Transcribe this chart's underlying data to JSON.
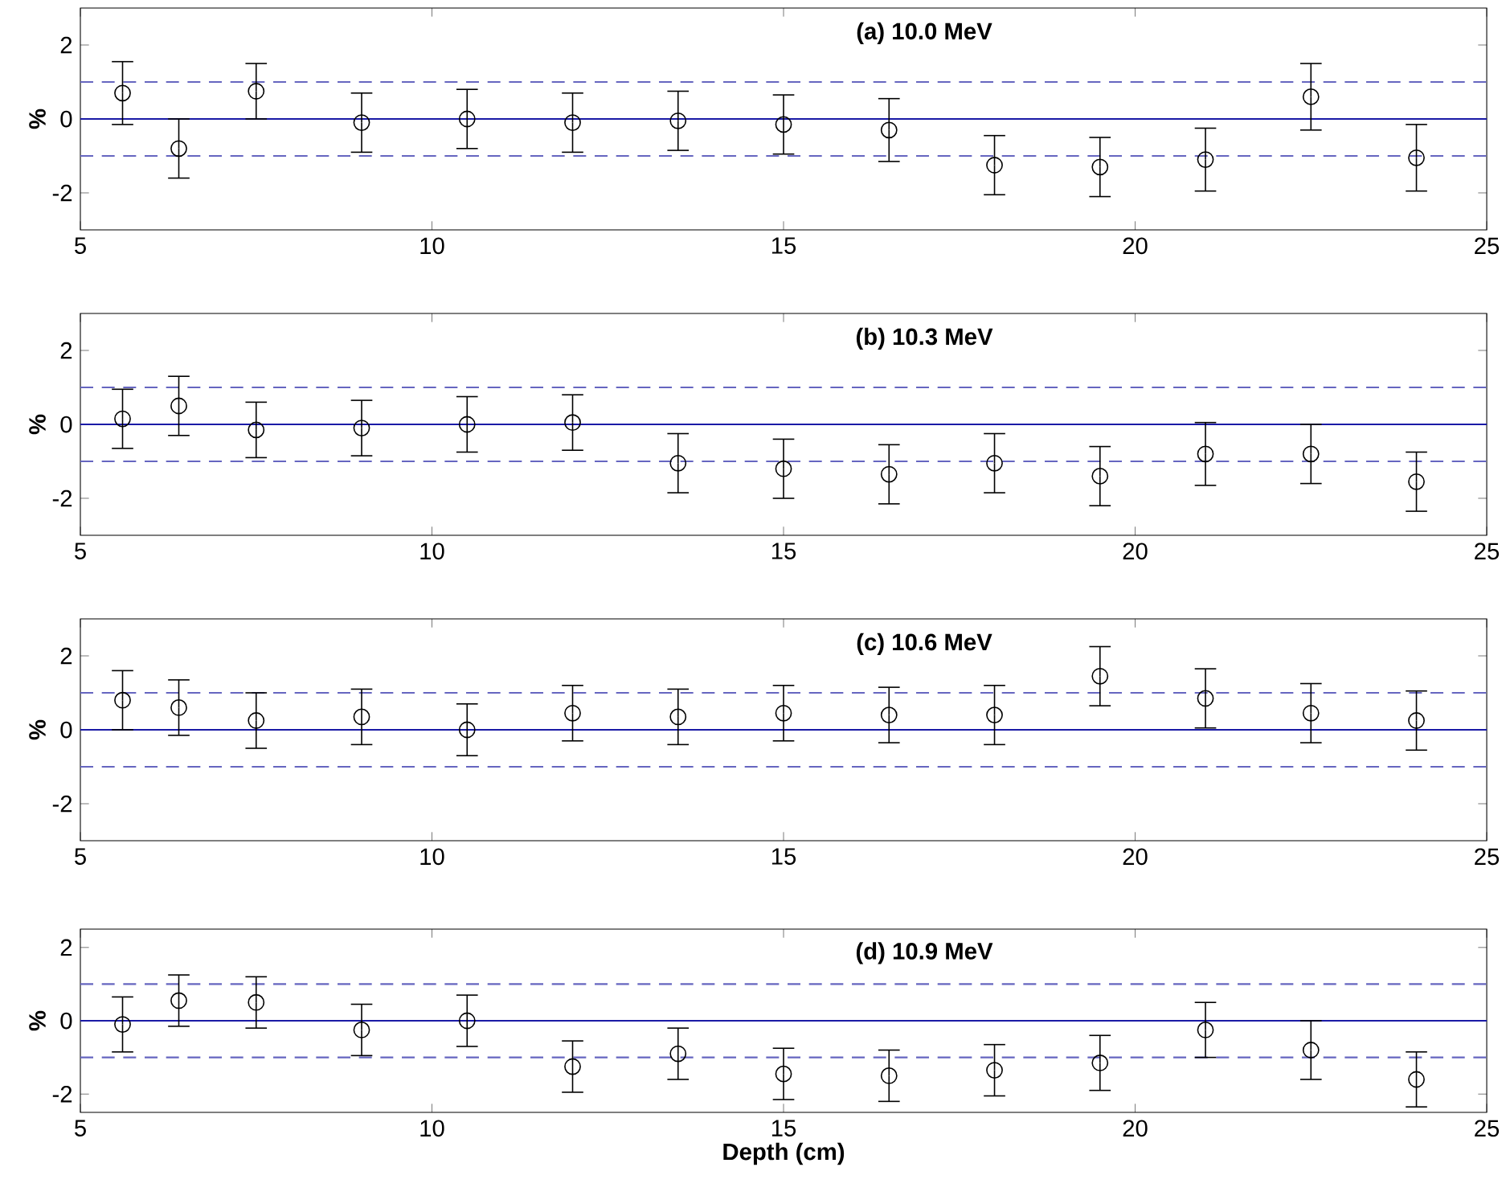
{
  "chart_data": [
    {
      "type": "scatter",
      "title": "(a) 10.0 MeV",
      "ylabel": "%",
      "marker": "circle",
      "x": [
        5.6,
        6.4,
        7.5,
        9,
        10.5,
        12,
        13.5,
        15,
        16.5,
        18,
        19.5,
        21,
        22.5,
        24
      ],
      "series": [
        {
          "color": "#000000",
          "values": [
            0.7,
            -0.8,
            0.75,
            -0.1,
            0,
            -0.1,
            -0.05,
            -0.15,
            -0.3,
            -1.25,
            -1.3,
            -1.1,
            0.6,
            -1.05
          ],
          "errors": [
            0.85,
            0.8,
            0.75,
            0.8,
            0.8,
            0.8,
            0.8,
            0.8,
            0.85,
            0.8,
            0.8,
            0.85,
            0.9,
            0.9
          ]
        }
      ],
      "xlim": [
        5,
        25
      ],
      "ylim": [
        -3,
        3
      ],
      "xticks": [
        5,
        10,
        15,
        20,
        25
      ],
      "yticks": [
        -2,
        0,
        2
      ],
      "ref_lines": [
        {
          "axis": "y",
          "value": 0,
          "color": "#1a1aa6",
          "line_style": "solid"
        },
        {
          "axis": "y",
          "value": 1,
          "color": "#6666c0",
          "line_style": "dashed"
        },
        {
          "axis": "y",
          "value": -1,
          "color": "#6666c0",
          "line_style": "dashed"
        }
      ]
    },
    {
      "type": "scatter",
      "title": "(b) 10.3 MeV",
      "ylabel": "%",
      "marker": "circle",
      "x": [
        5.6,
        6.4,
        7.5,
        9,
        10.5,
        12,
        13.5,
        15,
        16.5,
        18,
        19.5,
        21,
        22.5,
        24
      ],
      "series": [
        {
          "color": "#000000",
          "values": [
            0.15,
            0.5,
            -0.15,
            -0.1,
            0,
            0.05,
            -1.05,
            -1.2,
            -1.35,
            -1.05,
            -1.4,
            -0.8,
            -0.8,
            -1.55
          ],
          "errors": [
            0.8,
            0.8,
            0.75,
            0.75,
            0.75,
            0.75,
            0.8,
            0.8,
            0.8,
            0.8,
            0.8,
            0.85,
            0.8,
            0.8
          ]
        }
      ],
      "xlim": [
        5,
        25
      ],
      "ylim": [
        -3,
        3
      ],
      "xticks": [
        5,
        10,
        15,
        20,
        25
      ],
      "yticks": [
        -2,
        0,
        2
      ],
      "ref_lines": [
        {
          "axis": "y",
          "value": 0,
          "color": "#1a1aa6",
          "line_style": "solid"
        },
        {
          "axis": "y",
          "value": 1,
          "color": "#6666c0",
          "line_style": "dashed"
        },
        {
          "axis": "y",
          "value": -1,
          "color": "#6666c0",
          "line_style": "dashed"
        }
      ]
    },
    {
      "type": "scatter",
      "title": "(c) 10.6 MeV",
      "ylabel": "%",
      "marker": "circle",
      "x": [
        5.6,
        6.4,
        7.5,
        9,
        10.5,
        12,
        13.5,
        15,
        16.5,
        18,
        19.5,
        21,
        22.5,
        24
      ],
      "series": [
        {
          "color": "#000000",
          "values": [
            0.8,
            0.6,
            0.25,
            0.35,
            0,
            0.45,
            0.35,
            0.45,
            0.4,
            0.4,
            1.45,
            0.85,
            0.45,
            0.25
          ],
          "errors": [
            0.8,
            0.75,
            0.75,
            0.75,
            0.7,
            0.75,
            0.75,
            0.75,
            0.75,
            0.8,
            0.8,
            0.8,
            0.8,
            0.8
          ]
        }
      ],
      "xlim": [
        5,
        25
      ],
      "ylim": [
        -3,
        3
      ],
      "xticks": [
        5,
        10,
        15,
        20,
        25
      ],
      "yticks": [
        -2,
        0,
        2
      ],
      "ref_lines": [
        {
          "axis": "y",
          "value": 0,
          "color": "#1a1aa6",
          "line_style": "solid"
        },
        {
          "axis": "y",
          "value": 1,
          "color": "#6666c0",
          "line_style": "dashed"
        },
        {
          "axis": "y",
          "value": -1,
          "color": "#6666c0",
          "line_style": "dashed"
        }
      ]
    },
    {
      "type": "scatter",
      "title": "(d) 10.9 MeV",
      "xlabel": "Depth (cm)",
      "ylabel": "%",
      "marker": "circle",
      "x": [
        5.6,
        6.4,
        7.5,
        9,
        10.5,
        12,
        13.5,
        15,
        16.5,
        18,
        19.5,
        21,
        22.5,
        24
      ],
      "series": [
        {
          "color": "#000000",
          "values": [
            -0.1,
            0.55,
            0.5,
            -0.25,
            0,
            -1.25,
            -0.9,
            -1.45,
            -1.5,
            -1.35,
            -1.15,
            -0.25,
            -0.8,
            -1.6
          ],
          "errors": [
            0.75,
            0.7,
            0.7,
            0.7,
            0.7,
            0.7,
            0.7,
            0.7,
            0.7,
            0.7,
            0.75,
            0.75,
            0.8,
            0.75
          ]
        }
      ],
      "xlim": [
        5,
        25
      ],
      "ylim": [
        -2.5,
        2.5
      ],
      "xticks": [
        5,
        10,
        15,
        20,
        25
      ],
      "yticks": [
        -2,
        0,
        2
      ],
      "ref_lines": [
        {
          "axis": "y",
          "value": 0,
          "color": "#1a1aa6",
          "line_style": "solid"
        },
        {
          "axis": "y",
          "value": 1,
          "color": "#6666c0",
          "line_style": "dashed"
        },
        {
          "axis": "y",
          "value": -1,
          "color": "#6666c0",
          "line_style": "dashed"
        }
      ]
    }
  ]
}
